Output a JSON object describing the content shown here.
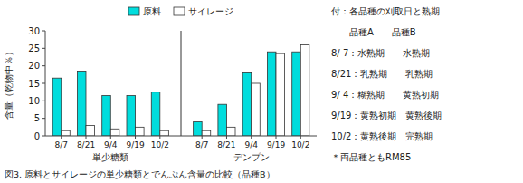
{
  "chart_data": {
    "type": "bar",
    "title": "図3. 原料とサイレージの単少糖類とでんぷん含量の比較（品種B）",
    "ylabel": "含量（乾物中％）",
    "categories": [
      "8/7",
      "8/21",
      "9/4",
      "9/19",
      "10/2",
      "8/7",
      "8/21",
      "9/4",
      "9/19",
      "10/2"
    ],
    "section_labels": [
      "単少糖類",
      "デンプン"
    ],
    "series": [
      {
        "name": "原料",
        "color": "#00DDDD",
        "values": [
          16.5,
          18.5,
          11.5,
          11.5,
          12.5,
          4.0,
          9.0,
          18.0,
          24.0,
          24.0
        ]
      },
      {
        "name": "サイレージ",
        "color": "#FFFFFF",
        "values": [
          1.5,
          3.0,
          2.0,
          2.5,
          1.5,
          1.5,
          2.5,
          15.0,
          23.5,
          26.0
        ]
      }
    ],
    "ylim": [
      0,
      30
    ],
    "yticks": [
      0,
      5,
      10,
      15,
      20,
      25,
      30
    ],
    "grid": false,
    "legend": "top",
    "annotations": [
      "付：各品種の刈取日と熟期",
      "　　品種A　　品種B",
      "8/ 7：水熟期　　水熟期",
      "8/21：乳熟期　　乳熟期",
      "9/ 4：糊熟期　　黄熟初期",
      "9/19：黄熟初期　黄熟後期",
      "10/2：黄熟後期　完熟期",
      "＊両品種ともRM85"
    ]
  }
}
